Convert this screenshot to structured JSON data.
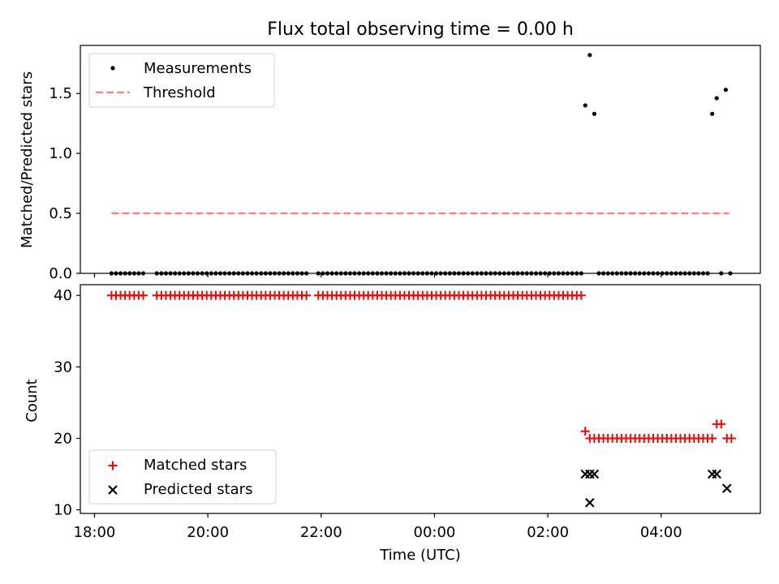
{
  "title": "Flux total observing time = 0.00 h",
  "colors": {
    "matched": "#ff0000",
    "predicted": "#000000",
    "threshold": "#ff7f7f",
    "measurement": "#000000"
  },
  "chart_data": [
    {
      "type": "scatter",
      "ylabel": "Matched/Predicted stars",
      "xlim": [
        -0.25,
        11.75
      ],
      "ylim": [
        0,
        1.9
      ],
      "yticks": [
        0.0,
        0.5,
        1.0,
        1.5
      ],
      "yticklabels": [
        "0.0",
        "0.5",
        "1.0",
        "1.5"
      ],
      "legend_position": "upper-left",
      "legend": [
        "Measurements",
        "Threshold"
      ],
      "threshold": {
        "name": "Threshold",
        "value": 0.5,
        "x": [
          0.3,
          11.2
        ]
      },
      "measurements": {
        "name": "Measurements",
        "points": [
          [
            0.3,
            0
          ],
          [
            0.38,
            0
          ],
          [
            0.46,
            0
          ],
          [
            0.54,
            0
          ],
          [
            0.62,
            0
          ],
          [
            0.7,
            0
          ],
          [
            0.78,
            0
          ],
          [
            0.86,
            0
          ],
          [
            1.1,
            0
          ],
          [
            1.18,
            0
          ],
          [
            1.26,
            0
          ],
          [
            1.34,
            0
          ],
          [
            1.42,
            0
          ],
          [
            1.5,
            0
          ],
          [
            1.58,
            0
          ],
          [
            1.66,
            0
          ],
          [
            1.74,
            0
          ],
          [
            1.82,
            0
          ],
          [
            1.9,
            0
          ],
          [
            1.98,
            0
          ],
          [
            2.06,
            0
          ],
          [
            2.14,
            0
          ],
          [
            2.22,
            0
          ],
          [
            2.3,
            0
          ],
          [
            2.38,
            0
          ],
          [
            2.46,
            0
          ],
          [
            2.54,
            0
          ],
          [
            2.62,
            0
          ],
          [
            2.7,
            0
          ],
          [
            2.78,
            0
          ],
          [
            2.86,
            0
          ],
          [
            2.94,
            0
          ],
          [
            3.02,
            0
          ],
          [
            3.1,
            0
          ],
          [
            3.18,
            0
          ],
          [
            3.26,
            0
          ],
          [
            3.34,
            0
          ],
          [
            3.42,
            0
          ],
          [
            3.5,
            0
          ],
          [
            3.58,
            0
          ],
          [
            3.66,
            0
          ],
          [
            3.74,
            0
          ],
          [
            3.95,
            0
          ],
          [
            4.03,
            0
          ],
          [
            4.11,
            0
          ],
          [
            4.19,
            0
          ],
          [
            4.27,
            0
          ],
          [
            4.35,
            0
          ],
          [
            4.43,
            0
          ],
          [
            4.51,
            0
          ],
          [
            4.59,
            0
          ],
          [
            4.67,
            0
          ],
          [
            4.75,
            0
          ],
          [
            4.83,
            0
          ],
          [
            4.91,
            0
          ],
          [
            4.99,
            0
          ],
          [
            5.07,
            0
          ],
          [
            5.15,
            0
          ],
          [
            5.23,
            0
          ],
          [
            5.31,
            0
          ],
          [
            5.39,
            0
          ],
          [
            5.47,
            0
          ],
          [
            5.55,
            0
          ],
          [
            5.63,
            0
          ],
          [
            5.71,
            0
          ],
          [
            5.79,
            0
          ],
          [
            5.87,
            0
          ],
          [
            5.95,
            0
          ],
          [
            6.03,
            0
          ],
          [
            6.11,
            0
          ],
          [
            6.19,
            0
          ],
          [
            6.27,
            0
          ],
          [
            6.35,
            0
          ],
          [
            6.43,
            0
          ],
          [
            6.51,
            0
          ],
          [
            6.59,
            0
          ],
          [
            6.67,
            0
          ],
          [
            6.75,
            0
          ],
          [
            6.83,
            0
          ],
          [
            6.91,
            0
          ],
          [
            6.99,
            0
          ],
          [
            7.07,
            0
          ],
          [
            7.15,
            0
          ],
          [
            7.23,
            0
          ],
          [
            7.31,
            0
          ],
          [
            7.39,
            0
          ],
          [
            7.47,
            0
          ],
          [
            7.55,
            0
          ],
          [
            7.63,
            0
          ],
          [
            7.71,
            0
          ],
          [
            7.79,
            0
          ],
          [
            7.87,
            0
          ],
          [
            7.95,
            0
          ],
          [
            8.03,
            0
          ],
          [
            8.11,
            0
          ],
          [
            8.19,
            0
          ],
          [
            8.27,
            0
          ],
          [
            8.35,
            0
          ],
          [
            8.43,
            0
          ],
          [
            8.51,
            0
          ],
          [
            8.59,
            0
          ],
          [
            8.66,
            1.4
          ],
          [
            8.74,
            1.82
          ],
          [
            8.82,
            1.33
          ],
          [
            8.9,
            0
          ],
          [
            8.98,
            0
          ],
          [
            9.06,
            0
          ],
          [
            9.14,
            0
          ],
          [
            9.22,
            0
          ],
          [
            9.3,
            0
          ],
          [
            9.38,
            0
          ],
          [
            9.46,
            0
          ],
          [
            9.54,
            0
          ],
          [
            9.62,
            0
          ],
          [
            9.7,
            0
          ],
          [
            9.78,
            0
          ],
          [
            9.86,
            0
          ],
          [
            9.94,
            0
          ],
          [
            10.02,
            0
          ],
          [
            10.1,
            0
          ],
          [
            10.18,
            0
          ],
          [
            10.26,
            0
          ],
          [
            10.34,
            0
          ],
          [
            10.42,
            0
          ],
          [
            10.5,
            0
          ],
          [
            10.58,
            0
          ],
          [
            10.66,
            0
          ],
          [
            10.74,
            0
          ],
          [
            10.82,
            0
          ],
          [
            10.9,
            1.33
          ],
          [
            10.98,
            1.46
          ],
          [
            11.14,
            1.53
          ],
          [
            11.06,
            0
          ],
          [
            11.22,
            0
          ]
        ]
      }
    },
    {
      "type": "scatter",
      "xlabel": "Time (UTC)",
      "ylabel": "Count",
      "xlim": [
        -0.25,
        11.75
      ],
      "ylim": [
        9.5,
        41.5
      ],
      "yticks": [
        10,
        20,
        30,
        40
      ],
      "yticklabels": [
        "10",
        "20",
        "30",
        "40"
      ],
      "xticks": [
        0,
        2,
        4,
        6,
        8,
        10
      ],
      "xticklabels": [
        "18:00",
        "20:00",
        "22:00",
        "00:00",
        "02:00",
        "04:00"
      ],
      "legend_position": "lower-left",
      "legend": [
        "Matched stars",
        "Predicted stars"
      ],
      "series": [
        {
          "name": "Matched stars",
          "marker": "plus",
          "points": [
            [
              0.3,
              40
            ],
            [
              0.38,
              40
            ],
            [
              0.46,
              40
            ],
            [
              0.54,
              40
            ],
            [
              0.62,
              40
            ],
            [
              0.7,
              40
            ],
            [
              0.78,
              40
            ],
            [
              0.86,
              40
            ],
            [
              1.1,
              40
            ],
            [
              1.18,
              40
            ],
            [
              1.26,
              40
            ],
            [
              1.34,
              40
            ],
            [
              1.42,
              40
            ],
            [
              1.5,
              40
            ],
            [
              1.58,
              40
            ],
            [
              1.66,
              40
            ],
            [
              1.74,
              40
            ],
            [
              1.82,
              40
            ],
            [
              1.9,
              40
            ],
            [
              1.98,
              40
            ],
            [
              2.06,
              40
            ],
            [
              2.14,
              40
            ],
            [
              2.22,
              40
            ],
            [
              2.3,
              40
            ],
            [
              2.38,
              40
            ],
            [
              2.46,
              40
            ],
            [
              2.54,
              40
            ],
            [
              2.62,
              40
            ],
            [
              2.7,
              40
            ],
            [
              2.78,
              40
            ],
            [
              2.86,
              40
            ],
            [
              2.94,
              40
            ],
            [
              3.02,
              40
            ],
            [
              3.1,
              40
            ],
            [
              3.18,
              40
            ],
            [
              3.26,
              40
            ],
            [
              3.34,
              40
            ],
            [
              3.42,
              40
            ],
            [
              3.5,
              40
            ],
            [
              3.58,
              40
            ],
            [
              3.66,
              40
            ],
            [
              3.74,
              40
            ],
            [
              3.95,
              40
            ],
            [
              4.03,
              40
            ],
            [
              4.11,
              40
            ],
            [
              4.19,
              40
            ],
            [
              4.27,
              40
            ],
            [
              4.35,
              40
            ],
            [
              4.43,
              40
            ],
            [
              4.51,
              40
            ],
            [
              4.59,
              40
            ],
            [
              4.67,
              40
            ],
            [
              4.75,
              40
            ],
            [
              4.83,
              40
            ],
            [
              4.91,
              40
            ],
            [
              4.99,
              40
            ],
            [
              5.07,
              40
            ],
            [
              5.15,
              40
            ],
            [
              5.23,
              40
            ],
            [
              5.31,
              40
            ],
            [
              5.39,
              40
            ],
            [
              5.47,
              40
            ],
            [
              5.55,
              40
            ],
            [
              5.63,
              40
            ],
            [
              5.71,
              40
            ],
            [
              5.79,
              40
            ],
            [
              5.87,
              40
            ],
            [
              5.95,
              40
            ],
            [
              6.03,
              40
            ],
            [
              6.11,
              40
            ],
            [
              6.19,
              40
            ],
            [
              6.27,
              40
            ],
            [
              6.35,
              40
            ],
            [
              6.43,
              40
            ],
            [
              6.51,
              40
            ],
            [
              6.59,
              40
            ],
            [
              6.67,
              40
            ],
            [
              6.75,
              40
            ],
            [
              6.83,
              40
            ],
            [
              6.91,
              40
            ],
            [
              6.99,
              40
            ],
            [
              7.07,
              40
            ],
            [
              7.15,
              40
            ],
            [
              7.23,
              40
            ],
            [
              7.31,
              40
            ],
            [
              7.39,
              40
            ],
            [
              7.47,
              40
            ],
            [
              7.55,
              40
            ],
            [
              7.63,
              40
            ],
            [
              7.71,
              40
            ],
            [
              7.79,
              40
            ],
            [
              7.87,
              40
            ],
            [
              7.95,
              40
            ],
            [
              8.03,
              40
            ],
            [
              8.11,
              40
            ],
            [
              8.19,
              40
            ],
            [
              8.27,
              40
            ],
            [
              8.35,
              40
            ],
            [
              8.43,
              40
            ],
            [
              8.51,
              40
            ],
            [
              8.59,
              40
            ],
            [
              8.66,
              21
            ],
            [
              8.74,
              20
            ],
            [
              8.82,
              20
            ],
            [
              8.9,
              20
            ],
            [
              8.98,
              20
            ],
            [
              9.06,
              20
            ],
            [
              9.14,
              20
            ],
            [
              9.22,
              20
            ],
            [
              9.3,
              20
            ],
            [
              9.38,
              20
            ],
            [
              9.46,
              20
            ],
            [
              9.54,
              20
            ],
            [
              9.62,
              20
            ],
            [
              9.7,
              20
            ],
            [
              9.78,
              20
            ],
            [
              9.86,
              20
            ],
            [
              9.94,
              20
            ],
            [
              10.02,
              20
            ],
            [
              10.1,
              20
            ],
            [
              10.18,
              20
            ],
            [
              10.26,
              20
            ],
            [
              10.34,
              20
            ],
            [
              10.42,
              20
            ],
            [
              10.5,
              20
            ],
            [
              10.58,
              20
            ],
            [
              10.66,
              20
            ],
            [
              10.74,
              20
            ],
            [
              10.82,
              20
            ],
            [
              10.9,
              20
            ],
            [
              10.98,
              22
            ],
            [
              11.06,
              22
            ],
            [
              11.16,
              20
            ],
            [
              11.24,
              20
            ]
          ]
        },
        {
          "name": "Predicted stars",
          "marker": "x",
          "points": [
            [
              8.66,
              15
            ],
            [
              8.74,
              15
            ],
            [
              8.82,
              15
            ],
            [
              8.74,
              11
            ],
            [
              10.9,
              15
            ],
            [
              10.98,
              15
            ],
            [
              11.16,
              13
            ]
          ]
        }
      ]
    }
  ]
}
